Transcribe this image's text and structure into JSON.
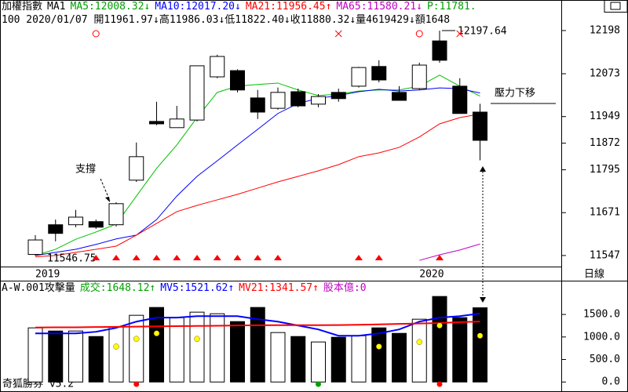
{
  "chart_data": [
    {
      "type": "candlestick",
      "header": [
        {
          "text": "加權指數",
          "color": "#000000"
        },
        {
          "text": "MA1",
          "color": "#000000"
        },
        {
          "text": "MA5:12008.32↓",
          "color": "#00a000"
        },
        {
          "text": "MA10:12017.20↓",
          "color": "#0000ff"
        },
        {
          "text": "MA21:11956.45↑",
          "color": "#ff0000"
        },
        {
          "text": "MA65:11580.21↓",
          "color": "#c000c0"
        },
        {
          "text": "P:11781.",
          "color": "#00a000"
        }
      ],
      "subheader": "100 2020/01/07 開11961.97↓高11986.03↓低11822.40↓收11880.32↓量4619429↓額1648",
      "categories": [
        "2019",
        null,
        null,
        null,
        null,
        null,
        null,
        null,
        null,
        null,
        null,
        null,
        null,
        null,
        null,
        null,
        null,
        null,
        null,
        "2020",
        null,
        null,
        null
      ],
      "open": [
        11550,
        11636,
        11636,
        11645,
        11636,
        11765,
        11935,
        11917,
        11939,
        12064,
        12082,
        12003,
        11973,
        12021,
        11985,
        12019,
        12037,
        12094,
        12019,
        12030,
        12168,
        12037,
        11961.97
      ],
      "high": [
        11606,
        11651,
        11679,
        11651,
        11701,
        11874,
        11992,
        11980,
        12096,
        12128,
        12086,
        12026,
        12033,
        12030,
        12014,
        12030,
        12093,
        12112,
        12037,
        12105,
        12197.64,
        12060,
        11986.03
      ],
      "low": [
        11546.75,
        11588,
        11629,
        11624,
        11631,
        11760,
        11924,
        11917,
        11935,
        12060,
        12019,
        11942,
        11969,
        11976,
        11976,
        11992,
        12033,
        12048,
        11996,
        12026,
        12105,
        11958,
        11822.4
      ],
      "close": [
        11592,
        11611,
        11658,
        11629,
        11697,
        11833,
        11928,
        11942,
        12096,
        12123,
        12026,
        11962,
        12019,
        11980,
        12007,
        12001,
        12091,
        12055,
        11996,
        12098,
        12112,
        11958,
        11880.32
      ],
      "up_color": "#ffffff",
      "down_color": "#000000",
      "series": [
        {
          "color": "#00c000",
          "values": [
            11547,
            11565,
            11594,
            11615,
            11638,
            11719,
            11799,
            11867,
            11946,
            12019,
            12037,
            12042,
            12046,
            12026,
            12010,
            12014,
            12023,
            12026,
            12026,
            12037,
            12069,
            12037,
            12008.32
          ]
        },
        {
          "color": "#0000ff",
          "values": [
            11547,
            11556,
            11565,
            11579,
            11595,
            11606,
            11651,
            11719,
            11776,
            11821,
            11867,
            11912,
            11958,
            11987,
            12002,
            12010,
            12021,
            12028,
            12023,
            12026,
            12032,
            12030,
            12017.2
          ]
        },
        {
          "color": "#ff0000",
          "values": [
            11543,
            11547,
            11556,
            11565,
            11574,
            11606,
            11640,
            11674,
            11692,
            11708,
            11724,
            11742,
            11760,
            11776,
            11792,
            11810,
            11833,
            11844,
            11860,
            11890,
            11928,
            11946,
            11956.45
          ]
        },
        {
          "color": "#c000c0",
          "values": [
            null,
            null,
            null,
            null,
            null,
            null,
            null,
            null,
            null,
            null,
            null,
            null,
            null,
            null,
            null,
            null,
            null,
            null,
            null,
            11533,
            11549,
            11563,
            11580.21
          ]
        }
      ],
      "ylim": [
        11515,
        12241
      ],
      "yticks": [
        11547,
        11671,
        11795,
        11872,
        11949,
        12073,
        12198
      ],
      "annotations": [
        "支撐",
        "壓力下移",
        "11546.75",
        "12197.64"
      ]
    },
    {
      "type": "bar",
      "header": [
        {
          "text": "A-W.001攻擊量",
          "color": "#000000"
        },
        {
          "text": "成交:1648.12↑",
          "color": "#00a000"
        },
        {
          "text": "MV5:1521.62↑",
          "color": "#0000ff"
        },
        {
          "text": "MV21:1341.57↑",
          "color": "#ff0000"
        },
        {
          "text": "股本億:0",
          "color": "#c000c0"
        }
      ],
      "period": "日線",
      "footer": "奇狐勝券 v5.2",
      "values": [
        1202,
        1132,
        1132,
        1010,
        1220,
        1481,
        1655,
        1429,
        1551,
        1516,
        1341,
        1655,
        1098,
        1010,
        889,
        993,
        1028,
        1202,
        1080,
        1394,
        1899,
        1429,
        1648.12
      ],
      "series": [
        {
          "color": "#0000ff",
          "values": [
            1080,
            1080,
            1080,
            1115,
            1202,
            1341,
            1429,
            1429,
            1463,
            1463,
            1463,
            1394,
            1341,
            1254,
            1167,
            1028,
            1028,
            1080,
            1167,
            1341,
            1429,
            1463,
            1521.62
          ]
        },
        {
          "color": "#ff0000",
          "values": [
            1210,
            1215,
            1215,
            1220,
            1225,
            1230,
            1235,
            1240,
            1245,
            1250,
            1255,
            1260,
            1262,
            1262,
            1262,
            1265,
            1270,
            1280,
            1290,
            1300,
            1310,
            1330,
            1341.57
          ]
        },
        {
          "color": "#ffff00",
          "values": [
            null,
            null,
            null,
            null,
            787,
            958,
            1080,
            null,
            958,
            null,
            null,
            null,
            null,
            null,
            null,
            null,
            null,
            787,
            null,
            889,
            1254,
            null,
            1028
          ]
        }
      ],
      "ylim": [
        -170,
        2250
      ],
      "yticks": [
        {
          "value": 0,
          "label": "0.0"
        },
        {
          "value": 500,
          "label": "500.0"
        },
        {
          "value": 1000,
          "label": "1000.0"
        },
        {
          "value": 1500,
          "label": "1500.0"
        }
      ]
    }
  ]
}
